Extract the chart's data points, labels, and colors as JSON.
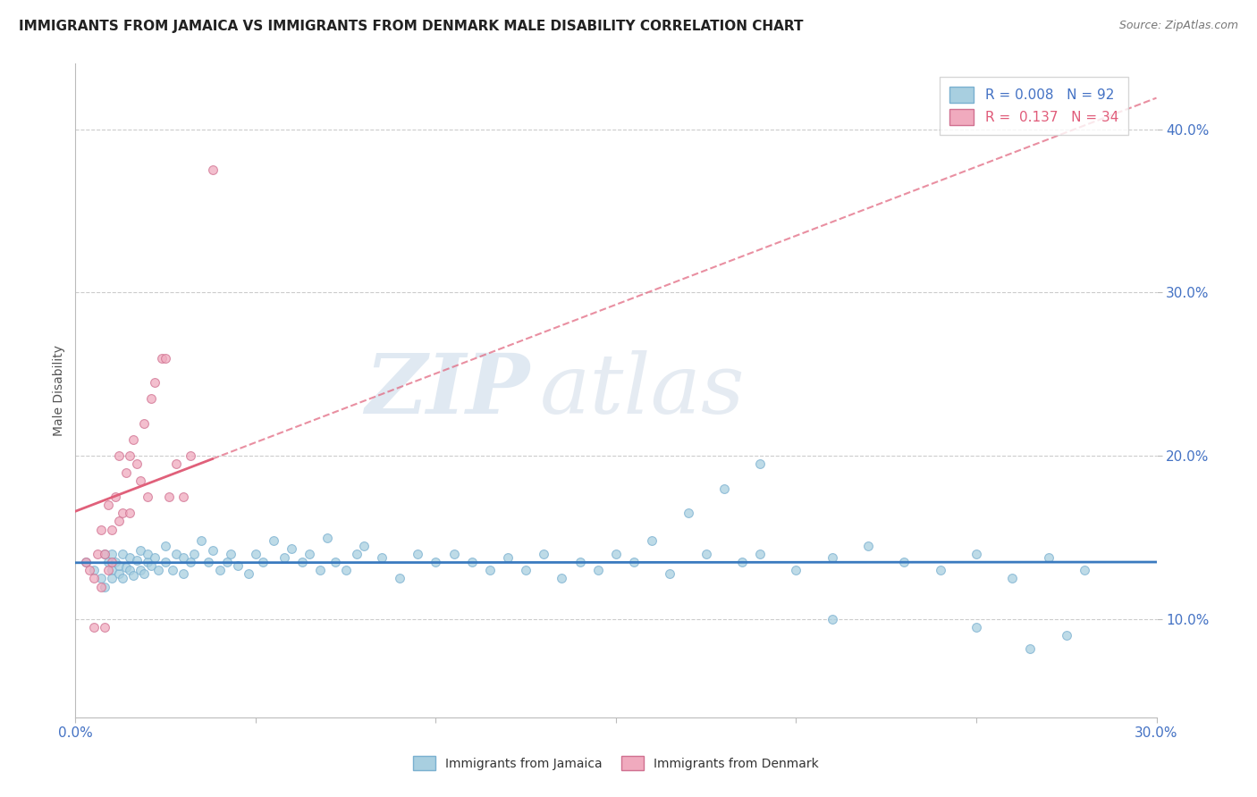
{
  "title": "IMMIGRANTS FROM JAMAICA VS IMMIGRANTS FROM DENMARK MALE DISABILITY CORRELATION CHART",
  "source": "Source: ZipAtlas.com",
  "ylabel": "Male Disability",
  "xlim": [
    0.0,
    0.3
  ],
  "ylim": [
    0.04,
    0.44
  ],
  "yticks": [
    0.1,
    0.2,
    0.3,
    0.4
  ],
  "xticks": [
    0.0,
    0.05,
    0.1,
    0.15,
    0.2,
    0.25,
    0.3
  ],
  "xtick_labels": [
    "0.0%",
    "",
    "",
    "",
    "",
    "",
    "30.0%"
  ],
  "ytick_labels": [
    "10.0%",
    "20.0%",
    "30.0%",
    "40.0%"
  ],
  "color_jamaica": "#a8cfe0",
  "color_denmark": "#f0aabe",
  "trendline_jamaica_color": "#3a7abf",
  "trendline_denmark_color": "#e0607a",
  "watermark_zip": "ZIP",
  "watermark_atlas": "atlas",
  "jamaica_x": [
    0.003,
    0.005,
    0.007,
    0.008,
    0.008,
    0.009,
    0.01,
    0.01,
    0.01,
    0.011,
    0.012,
    0.012,
    0.013,
    0.013,
    0.014,
    0.015,
    0.015,
    0.016,
    0.017,
    0.018,
    0.018,
    0.019,
    0.02,
    0.02,
    0.021,
    0.022,
    0.023,
    0.025,
    0.025,
    0.027,
    0.028,
    0.03,
    0.03,
    0.032,
    0.033,
    0.035,
    0.037,
    0.038,
    0.04,
    0.042,
    0.043,
    0.045,
    0.048,
    0.05,
    0.052,
    0.055,
    0.058,
    0.06,
    0.063,
    0.065,
    0.068,
    0.07,
    0.072,
    0.075,
    0.078,
    0.08,
    0.085,
    0.09,
    0.095,
    0.1,
    0.105,
    0.11,
    0.115,
    0.12,
    0.125,
    0.13,
    0.135,
    0.14,
    0.145,
    0.15,
    0.155,
    0.16,
    0.165,
    0.17,
    0.175,
    0.18,
    0.185,
    0.19,
    0.2,
    0.21,
    0.22,
    0.23,
    0.24,
    0.25,
    0.26,
    0.27,
    0.28,
    0.19,
    0.21,
    0.25,
    0.265,
    0.275
  ],
  "jamaica_y": [
    0.135,
    0.13,
    0.125,
    0.14,
    0.12,
    0.135,
    0.13,
    0.125,
    0.14,
    0.135,
    0.128,
    0.133,
    0.14,
    0.125,
    0.132,
    0.13,
    0.138,
    0.127,
    0.136,
    0.13,
    0.142,
    0.128,
    0.135,
    0.14,
    0.133,
    0.138,
    0.13,
    0.145,
    0.135,
    0.13,
    0.14,
    0.138,
    0.128,
    0.135,
    0.14,
    0.148,
    0.135,
    0.142,
    0.13,
    0.135,
    0.14,
    0.133,
    0.128,
    0.14,
    0.135,
    0.148,
    0.138,
    0.143,
    0.135,
    0.14,
    0.13,
    0.15,
    0.135,
    0.13,
    0.14,
    0.145,
    0.138,
    0.125,
    0.14,
    0.135,
    0.14,
    0.135,
    0.13,
    0.138,
    0.13,
    0.14,
    0.125,
    0.135,
    0.13,
    0.14,
    0.135,
    0.148,
    0.128,
    0.165,
    0.14,
    0.18,
    0.135,
    0.14,
    0.13,
    0.138,
    0.145,
    0.135,
    0.13,
    0.095,
    0.125,
    0.138,
    0.13,
    0.195,
    0.1,
    0.14,
    0.082,
    0.09
  ],
  "denmark_x": [
    0.003,
    0.004,
    0.005,
    0.005,
    0.006,
    0.007,
    0.007,
    0.008,
    0.008,
    0.009,
    0.009,
    0.01,
    0.01,
    0.011,
    0.012,
    0.012,
    0.013,
    0.014,
    0.015,
    0.015,
    0.016,
    0.017,
    0.018,
    0.019,
    0.02,
    0.021,
    0.022,
    0.024,
    0.025,
    0.026,
    0.028,
    0.03,
    0.032,
    0.038
  ],
  "denmark_y": [
    0.135,
    0.13,
    0.125,
    0.095,
    0.14,
    0.12,
    0.155,
    0.095,
    0.14,
    0.13,
    0.17,
    0.135,
    0.155,
    0.175,
    0.16,
    0.2,
    0.165,
    0.19,
    0.165,
    0.2,
    0.21,
    0.195,
    0.185,
    0.22,
    0.175,
    0.235,
    0.245,
    0.26,
    0.26,
    0.175,
    0.195,
    0.175,
    0.2,
    0.375
  ]
}
